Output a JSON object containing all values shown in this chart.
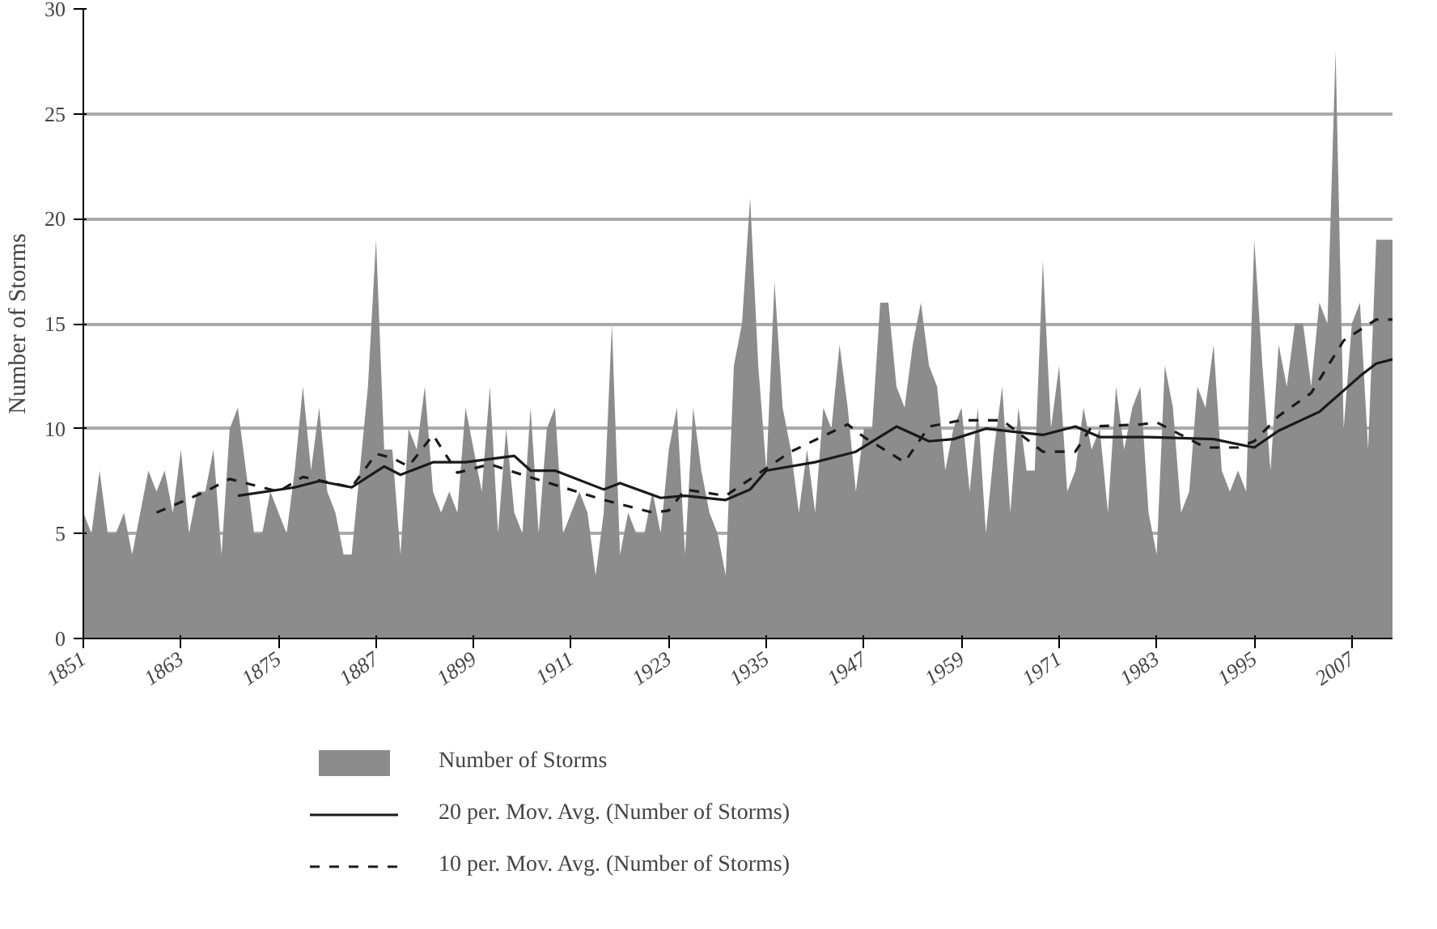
{
  "chart_data": {
    "type": "area",
    "ylabel": "Number of Storms",
    "x": [
      1851,
      1852,
      1853,
      1854,
      1855,
      1856,
      1857,
      1858,
      1859,
      1860,
      1861,
      1862,
      1863,
      1864,
      1865,
      1866,
      1867,
      1868,
      1869,
      1870,
      1871,
      1872,
      1873,
      1874,
      1875,
      1876,
      1877,
      1878,
      1879,
      1880,
      1881,
      1882,
      1883,
      1884,
      1885,
      1886,
      1887,
      1888,
      1889,
      1890,
      1891,
      1892,
      1893,
      1894,
      1895,
      1896,
      1897,
      1898,
      1899,
      1900,
      1901,
      1902,
      1903,
      1904,
      1905,
      1906,
      1907,
      1908,
      1909,
      1910,
      1911,
      1912,
      1913,
      1914,
      1915,
      1916,
      1917,
      1918,
      1919,
      1920,
      1921,
      1922,
      1923,
      1924,
      1925,
      1926,
      1927,
      1928,
      1929,
      1930,
      1931,
      1932,
      1933,
      1934,
      1935,
      1936,
      1937,
      1938,
      1939,
      1940,
      1941,
      1942,
      1943,
      1944,
      1945,
      1946,
      1947,
      1948,
      1949,
      1950,
      1951,
      1952,
      1953,
      1954,
      1955,
      1956,
      1957,
      1958,
      1959,
      1960,
      1961,
      1962,
      1963,
      1964,
      1965,
      1966,
      1967,
      1968,
      1969,
      1970,
      1971,
      1972,
      1973,
      1974,
      1975,
      1976,
      1977,
      1978,
      1979,
      1980,
      1981,
      1982,
      1983,
      1984,
      1985,
      1986,
      1987,
      1988,
      1989,
      1990,
      1991,
      1992,
      1993,
      1994,
      1995,
      1996,
      1997,
      1998,
      1999,
      2000,
      2001,
      2002,
      2003,
      2004,
      2005,
      2006,
      2007,
      2008,
      2009,
      2010,
      2011,
      2012
    ],
    "series": [
      {
        "name": "Number of Storms",
        "color": "#8c8c8c",
        "values": [
          6,
          5,
          8,
          5,
          5,
          6,
          4,
          6,
          8,
          7,
          8,
          6,
          9,
          5,
          7,
          7,
          9,
          4,
          10,
          11,
          8,
          5,
          5,
          7,
          6,
          5,
          8,
          12,
          8,
          11,
          7,
          6,
          4,
          4,
          8,
          12,
          19,
          9,
          9,
          4,
          10,
          9,
          12,
          7,
          6,
          7,
          6,
          11,
          9,
          7,
          12,
          5,
          10,
          6,
          5,
          11,
          5,
          10,
          11,
          5,
          6,
          7,
          6,
          3,
          6,
          15,
          4,
          6,
          5,
          5,
          7,
          5,
          9,
          11,
          4,
          11,
          8,
          6,
          5,
          3,
          13,
          15,
          21,
          13,
          8,
          17,
          11,
          9,
          6,
          9,
          6,
          11,
          10,
          14,
          11,
          7,
          10,
          10,
          16,
          16,
          12,
          11,
          14,
          16,
          13,
          12,
          8,
          10,
          11,
          7,
          11,
          5,
          9,
          12,
          6,
          11,
          8,
          8,
          18,
          10,
          13,
          7,
          8,
          11,
          9,
          10,
          6,
          12,
          9,
          11,
          12,
          6,
          4,
          13,
          11,
          6,
          7,
          12,
          11,
          14,
          8,
          7,
          8,
          7,
          19,
          13,
          8,
          14,
          12,
          15,
          15,
          12,
          16,
          15,
          28,
          10,
          15,
          16,
          9,
          19,
          19,
          19
        ]
      },
      {
        "name": "20 per. Mov. Avg. (Number of Storms)",
        "type": "line",
        "line_style": "solid",
        "color": "#1a1a1a",
        "x": [
          1870,
          1877,
          1880,
          1884,
          1888,
          1890,
          1894,
          1898,
          1904,
          1906,
          1909,
          1915,
          1917,
          1922,
          1925,
          1930,
          1933,
          1935,
          1941,
          1946,
          1951,
          1955,
          1958,
          1962,
          1969,
          1973,
          1976,
          1982,
          1990,
          1995,
          1998,
          2003,
          2008,
          2010,
          2012
        ],
        "values": [
          6.8,
          7.2,
          7.5,
          7.2,
          8.2,
          7.8,
          8.4,
          8.4,
          8.7,
          8.0,
          8.0,
          7.1,
          7.4,
          6.7,
          6.8,
          6.6,
          7.1,
          8.0,
          8.4,
          8.9,
          10.1,
          9.4,
          9.5,
          10.0,
          9.7,
          10.1,
          9.6,
          9.6,
          9.5,
          9.1,
          9.9,
          10.8,
          12.5,
          13.1,
          13.3
        ]
      },
      {
        "name": "10 per. Mov. Avg. (Number of Storms)",
        "type": "line",
        "line_style": "dashed",
        "color": "#1a1a1a",
        "x": [
          1860,
          1866,
          1869,
          1875,
          1878,
          1884,
          1887,
          1889,
          1891,
          1894,
          1897,
          1901,
          1905,
          1915,
          1921,
          1923,
          1925,
          1930,
          1938,
          1945,
          1947,
          1952,
          1955,
          1959,
          1964,
          1969,
          1973,
          1975,
          1981,
          1983,
          1989,
          1993,
          1995,
          1998,
          2002,
          2006,
          2010,
          2012
        ],
        "values": [
          6.0,
          7.0,
          7.6,
          7.0,
          7.7,
          7.2,
          8.8,
          8.6,
          8.2,
          9.7,
          7.9,
          8.3,
          7.8,
          6.6,
          6.0,
          6.1,
          7.1,
          6.8,
          8.9,
          10.2,
          9.6,
          8.4,
          10.1,
          10.4,
          10.4,
          8.9,
          8.9,
          10.1,
          10.2,
          10.3,
          9.1,
          9.1,
          9.4,
          10.6,
          11.7,
          14.2,
          15.2,
          15.2
        ]
      }
    ],
    "xlim": [
      1851,
      2012
    ],
    "xticks": [
      1851,
      1863,
      1875,
      1887,
      1899,
      1911,
      1923,
      1935,
      1947,
      1959,
      1971,
      1983,
      1995,
      2007
    ],
    "ylim": [
      0,
      30
    ],
    "yticks": [
      0,
      5,
      10,
      15,
      20,
      25,
      30
    ],
    "grid": "y",
    "legend": "bottom"
  }
}
